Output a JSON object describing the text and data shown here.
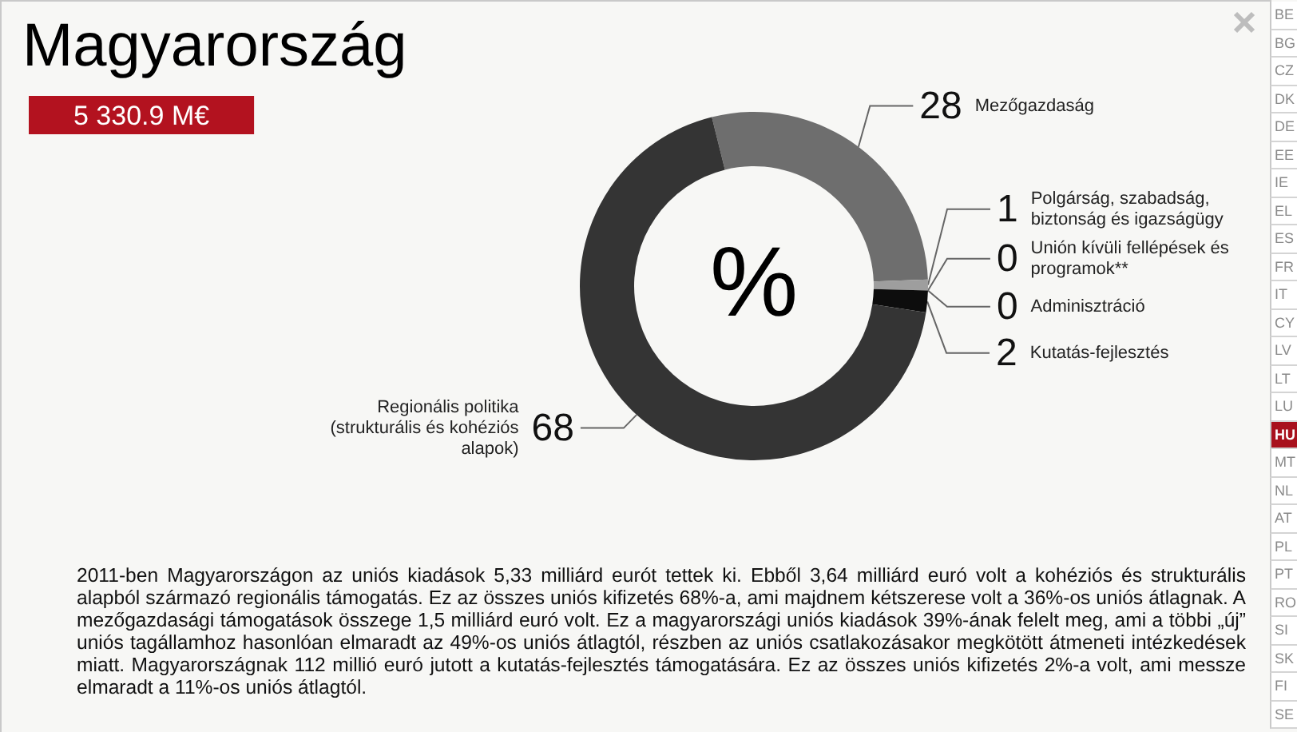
{
  "chart_data": {
    "type": "donut",
    "title": "Magyarország",
    "subtitle": "5 330.9 M€",
    "categories": [
      "Mezőgazdaság",
      "Polgárság, szabadság, biztonság és igazságügy",
      "Unión kívüli fellépések és programok**",
      "Adminisztráció",
      "Kutatás-fejlesztés",
      "Regionális politika (strukturális és kohéziós alapok)"
    ],
    "values": [
      28,
      1,
      0,
      0,
      2,
      68
    ],
    "value_labels": [
      "28",
      "1",
      "0",
      "0",
      "2",
      "68"
    ],
    "colors": [
      "#6e6e6e",
      "#9e9e9e",
      "#bababa",
      "#dadada",
      "#0d0d0d",
      "#343434"
    ],
    "annotations": [
      "%",
      "2011-ben Magyarországon az uniós kiadások 5,33 milliárd eurót tettek ki. Ebből 3,64 milliárd euró volt a kohéziós és strukturális alapból származó regionális támogatás. Ez az összes uniós kifizetés 68%-a, ami majdnem kétszerese volt a 36%-os uniós átlagnak. A mezőgazdasági támogatások összege 1,5 milliárd euró volt. Ez a magyarországi uniós kiadások 39%-ának felelt meg, ami a többi „új” uniós tagállamhoz hasonlóan elmaradt az 49%-os uniós átlagtól, részben az uniós csatlakozásakor megkötött átmeneti intézkedések miatt. Magyarországnak 112 millió euró jutott a kutatás-fejlesztés támogatására. Ez az összes uniós kifizetés 2%-a volt, ami messze elmaradt a 11%-os uniós átlagtól.",
      "BE",
      "BG",
      "CZ",
      "DK",
      "DE",
      "EE",
      "IE",
      "EL",
      "ES",
      "FR",
      "IT",
      "CY",
      "LV",
      "LT",
      "LU",
      "HU",
      "MT",
      "NL",
      "AT",
      "PL",
      "PT",
      "RO",
      "SI",
      "SK",
      "FI",
      "SE"
    ]
  }
}
